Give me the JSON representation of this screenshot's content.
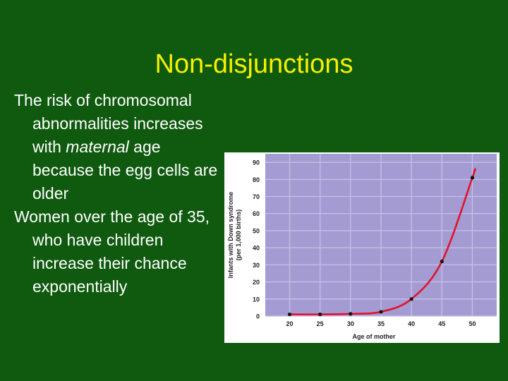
{
  "slide": {
    "title": "Non-disjunctions",
    "bullet1": {
      "text_before": "The risk of chromosomal abnormalities increases with ",
      "text_emphasis": "maternal",
      "text_after": " age because the egg cells are older"
    },
    "bullet2": "Women over the age of 35, who have children increase their chance exponentially"
  },
  "colors": {
    "background": "#0f5a0f",
    "title": "#f5f000",
    "body_text": "#ffffff",
    "plot_background": "#a49bd2",
    "grid": "#c7c0e6",
    "curve": "#e0142a",
    "points": "#111111"
  },
  "chart_data": {
    "type": "line",
    "title": "",
    "xlabel": "Age of mother",
    "ylabel": "Infants with Down syndrome",
    "ylabel2": "(per 1,000 births)",
    "xlim": [
      16,
      54
    ],
    "ylim": [
      0,
      95
    ],
    "x_ticks": [
      20,
      25,
      30,
      35,
      40,
      45,
      50
    ],
    "y_ticks": [
      0,
      10,
      20,
      30,
      40,
      50,
      60,
      70,
      80,
      90
    ],
    "grid": true,
    "legend": "none",
    "series": [
      {
        "points": [
          [
            20,
            1
          ],
          [
            25,
            1
          ],
          [
            30,
            1.3
          ],
          [
            35,
            2.5
          ],
          [
            40,
            10
          ],
          [
            45,
            32
          ],
          [
            50,
            81
          ]
        ]
      }
    ],
    "curve_end": [
      50.3,
      85
    ]
  }
}
